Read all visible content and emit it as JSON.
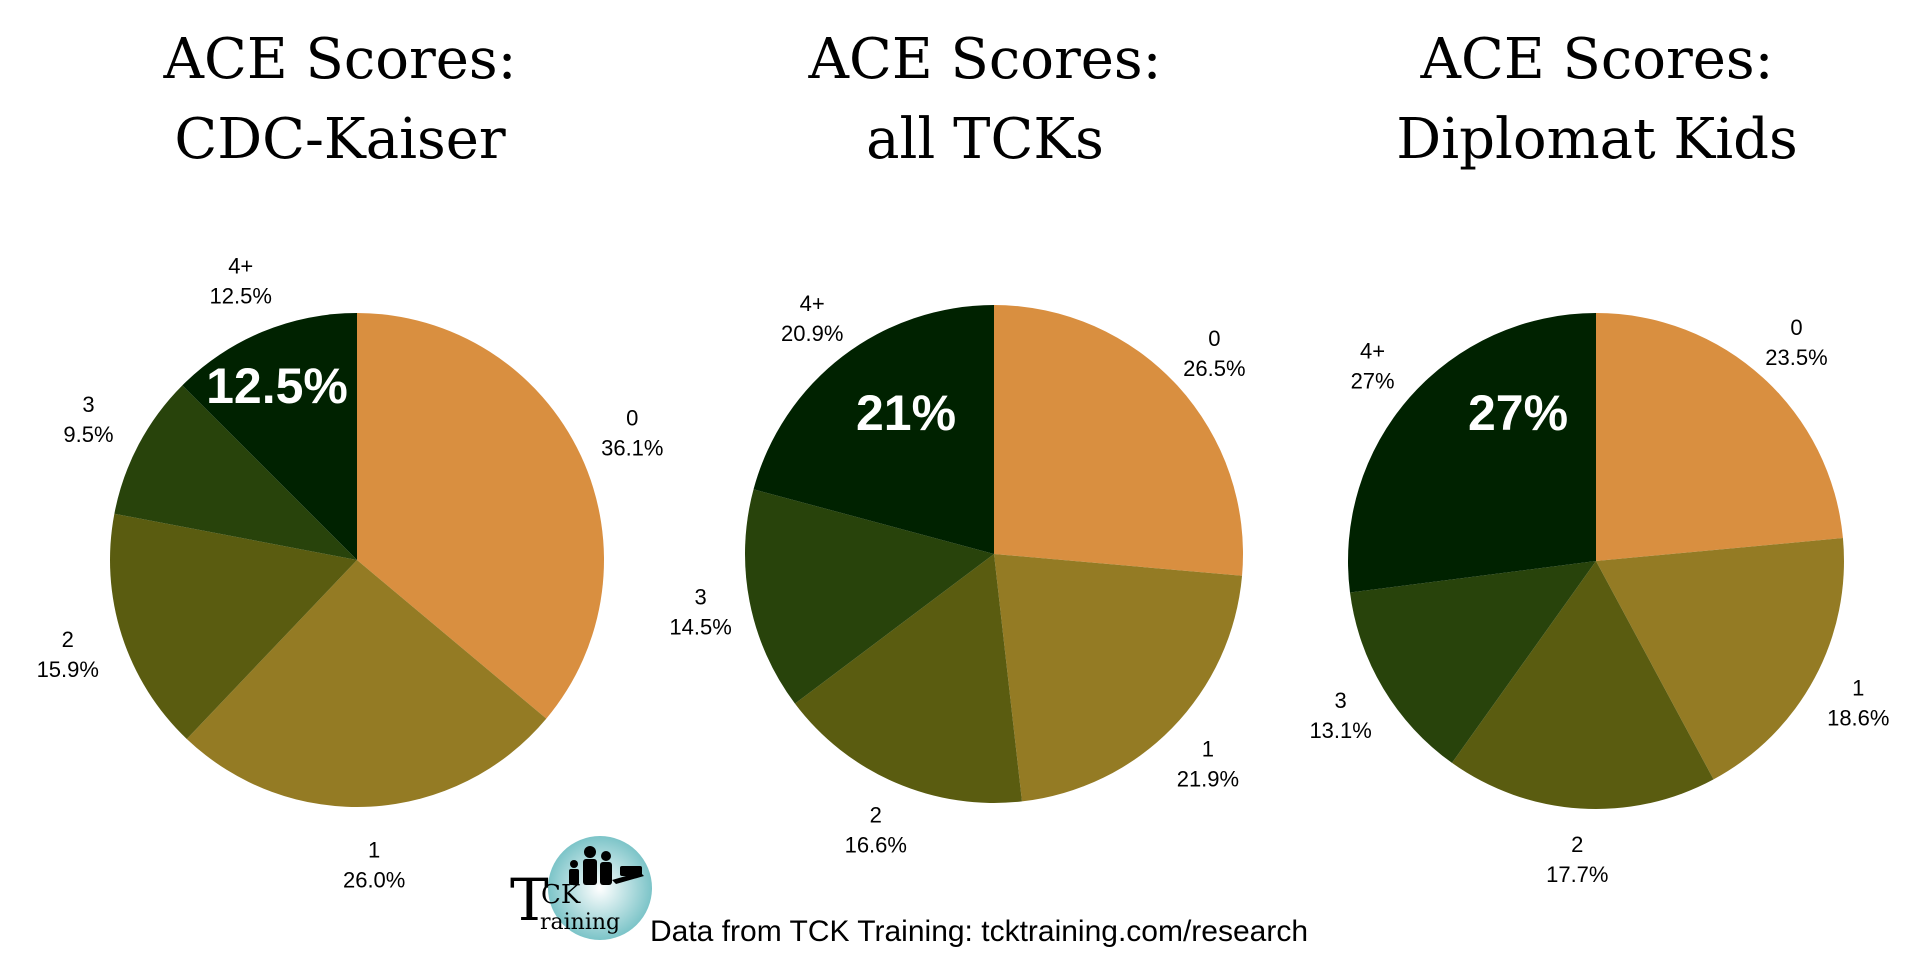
{
  "colors": {
    "c0": "#d98f40",
    "c1": "#947b24",
    "c2": "#5a5c10",
    "c3": "#28430b",
    "c4": "#002200"
  },
  "chart_data": [
    {
      "type": "pie",
      "title_lines": [
        "ACE Scores:",
        "CDC-Kaiser"
      ],
      "slices": [
        {
          "category": "0",
          "label": "36.1%",
          "value": 36.1
        },
        {
          "category": "1",
          "label": "26.0%",
          "value": 26.0
        },
        {
          "category": "2",
          "label": "15.9%",
          "value": 15.9
        },
        {
          "category": "3",
          "label": "9.5%",
          "value": 9.5
        },
        {
          "category": "4+",
          "label": "12.5%",
          "value": 12.5
        }
      ],
      "highlight": "12.5%"
    },
    {
      "type": "pie",
      "title_lines": [
        "ACE Scores:",
        "all TCKs"
      ],
      "slices": [
        {
          "category": "0",
          "label": "26.5%",
          "value": 26.5
        },
        {
          "category": "1",
          "label": "21.9%",
          "value": 21.9
        },
        {
          "category": "2",
          "label": "16.6%",
          "value": 16.6
        },
        {
          "category": "3",
          "label": "14.5%",
          "value": 14.5
        },
        {
          "category": "4+",
          "label": "20.9%",
          "value": 20.9
        }
      ],
      "highlight": "21%"
    },
    {
      "type": "pie",
      "title_lines": [
        "ACE Scores:",
        "Diplomat Kids"
      ],
      "slices": [
        {
          "category": "0",
          "label": "23.5%",
          "value": 23.5
        },
        {
          "category": "1",
          "label": "18.6%",
          "value": 18.6
        },
        {
          "category": "2",
          "label": "17.7%",
          "value": 17.7
        },
        {
          "category": "3",
          "label": "13.1%",
          "value": 13.1
        },
        {
          "category": "4+",
          "label": "27%",
          "value": 27
        }
      ],
      "highlight": "27%"
    }
  ],
  "logo": {
    "line1": "CK",
    "line2": "raining",
    "initial": "T"
  },
  "footer": {
    "text": "Data from TCK Training: tcktraining.com/research"
  }
}
